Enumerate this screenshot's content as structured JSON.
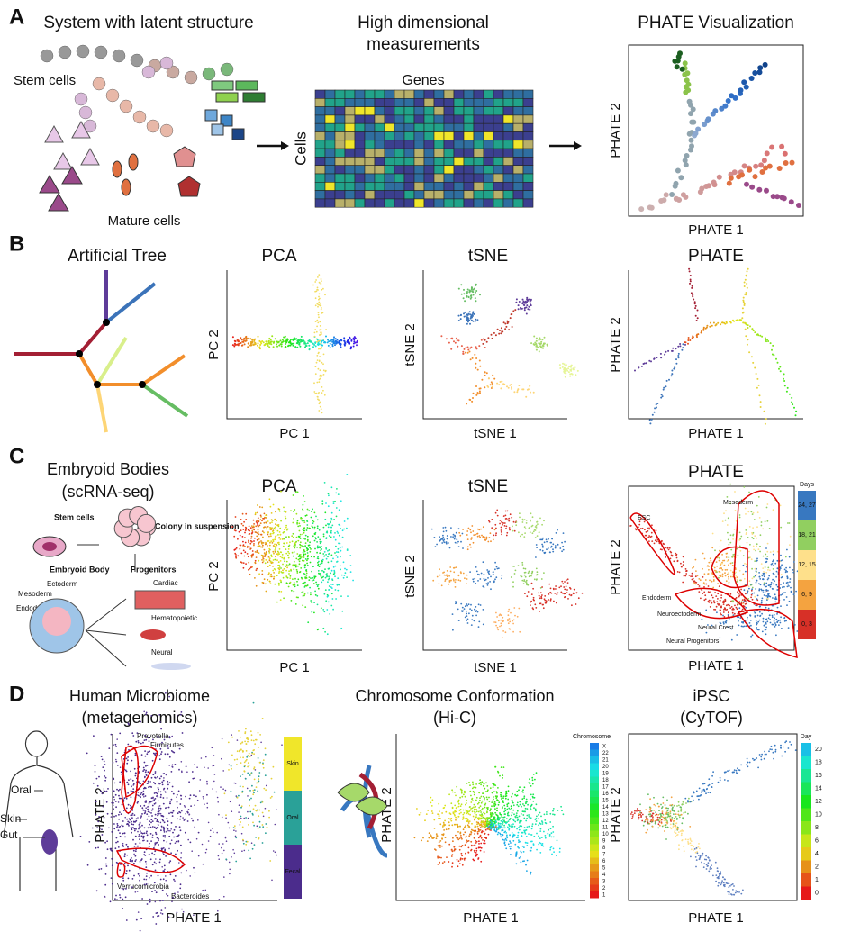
{
  "panels": [
    {
      "label": "A",
      "items": [
        {
          "title": "System with latent structure",
          "annotations": [
            "Stem cells",
            "Mature cells"
          ]
        },
        {
          "title_lines": [
            "High dimensional",
            "measurements"
          ],
          "xlabel": "Genes",
          "ylabel": "Cells"
        },
        {
          "title": "PHATE Visualization",
          "xlabel": "PHATE 1",
          "ylabel": "PHATE 2"
        }
      ]
    },
    {
      "label": "B",
      "items": [
        {
          "title": "Artificial Tree"
        },
        {
          "title": "PCA",
          "xlabel": "PC 1",
          "ylabel": "PC 2"
        },
        {
          "title": "tSNE",
          "xlabel": "tSNE 1",
          "ylabel": "tSNE 2"
        },
        {
          "title": "PHATE",
          "xlabel": "PHATE 1",
          "ylabel": "PHATE 2"
        }
      ]
    },
    {
      "label": "C",
      "items": [
        {
          "title": "Embryoid Bodies",
          "subtitle": "(scRNA-seq)",
          "annotations": [
            "Stem cells",
            "Colony in suspension",
            "Embryoid Body",
            "Ectoderm",
            "Mesoderm",
            "Endoderm",
            "Progenitors",
            "Cardiac",
            "Hematopoietic",
            "Neural"
          ]
        },
        {
          "title": "PCA",
          "xlabel": "PC 1",
          "ylabel": "PC 2"
        },
        {
          "title": "tSNE",
          "xlabel": "tSNE 1",
          "ylabel": "tSNE 2"
        },
        {
          "title": "PHATE",
          "xlabel": "PHATE 1",
          "ylabel": "PHATE 2",
          "annotations": [
            "ESC",
            "Mesoderm",
            "Endoderm",
            "Neuroectoderm",
            "Neural Crest",
            "Neural Progenitors"
          ],
          "legend_title": "Days",
          "legend": [
            "24, 27",
            "18, 21",
            "12, 15",
            "6, 9",
            "0, 3"
          ]
        }
      ]
    },
    {
      "label": "D",
      "items": [
        {
          "title": "Human Microbiome",
          "subtitle": "(metagenomics)",
          "xlabel": "PHATE 1",
          "ylabel": "PHATE 2",
          "annotations": [
            "Oral",
            "Skin",
            "Gut",
            "Prevotella",
            "Firmicutes",
            "Verrucomicrobia",
            "Bacteroides"
          ],
          "legend": [
            "Skin",
            "Oral",
            "Fecal"
          ]
        },
        {
          "title": "Chromosome Conformation",
          "subtitle": "(Hi-C)",
          "xlabel": "PHATE 1",
          "ylabel": "PHATE 2",
          "legend_title": "Chromosome",
          "legend": [
            "X",
            "22",
            "21",
            "20",
            "19",
            "18",
            "17",
            "16",
            "15",
            "14",
            "13",
            "12",
            "11",
            "10",
            "9",
            "8",
            "7",
            "6",
            "5",
            "4",
            "3",
            "2",
            "1"
          ]
        },
        {
          "title": "iPSC",
          "subtitle": "(CyTOF)",
          "xlabel": "PHATE 1",
          "ylabel": "PHATE 2",
          "legend_title": "Day",
          "legend": [
            "20",
            "18",
            "16",
            "14",
            "12",
            "10",
            "8",
            "6",
            "4",
            "2",
            "1",
            "0"
          ]
        }
      ]
    }
  ]
}
